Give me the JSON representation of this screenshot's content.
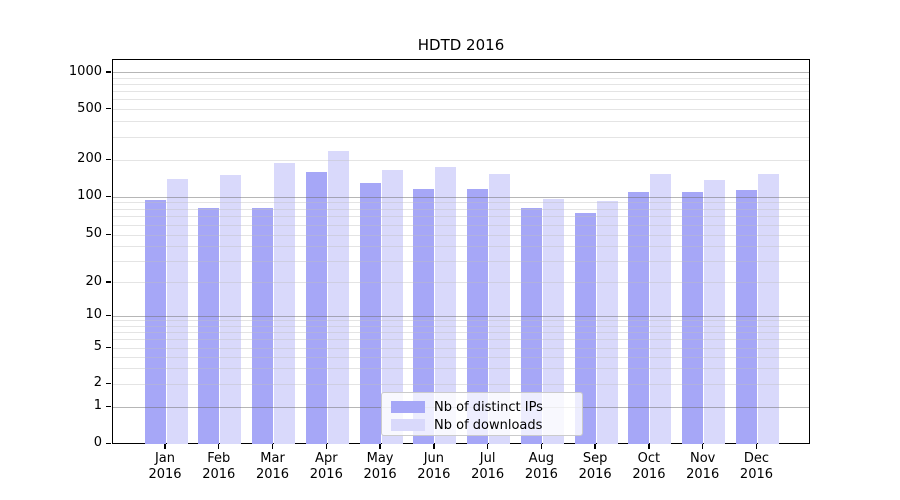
{
  "title": "HDTD 2016",
  "colors": {
    "ips_bar": "#a6a7f7",
    "downloads_bar": "#d9d9fb",
    "grid_major": "rgba(110,110,110,0.5)",
    "grid_minor": "rgba(190,190,190,0.42)",
    "spine": "#000000",
    "legend_border": "#cbcbcb"
  },
  "legend": {
    "items": [
      {
        "label": "Nb of distinct IPs",
        "color_key": "ips_bar"
      },
      {
        "label": "Nb of downloads",
        "color_key": "downloads_bar"
      }
    ]
  },
  "axes": {
    "y_tick_labels": [
      "0",
      "1",
      "2",
      "5",
      "10",
      "20",
      "50",
      "100",
      "200",
      "500",
      "1000"
    ],
    "x_tick_year": "2016"
  },
  "chart_data": {
    "type": "bar",
    "title": "HDTD 2016",
    "categories": [
      "Jan 2016",
      "Feb 2016",
      "Mar 2016",
      "Apr 2016",
      "May 2016",
      "Jun 2016",
      "Jul 2016",
      "Aug 2016",
      "Sep 2016",
      "Oct 2016",
      "Nov 2016",
      "Dec 2016"
    ],
    "month_labels": [
      "Jan",
      "Feb",
      "Mar",
      "Apr",
      "May",
      "Jun",
      "Jul",
      "Aug",
      "Sep",
      "Oct",
      "Nov",
      "Dec"
    ],
    "year_label": "2016",
    "series": [
      {
        "name": "Nb of distinct IPs",
        "color_key": "ips_bar",
        "values": [
          94,
          82,
          82,
          161,
          130,
          117,
          116,
          82,
          75,
          109,
          109,
          115
        ]
      },
      {
        "name": "Nb of downloads",
        "color_key": "downloads_bar",
        "values": [
          140,
          151,
          190,
          237,
          167,
          177,
          155,
          97,
          93,
          154,
          139,
          153
        ]
      }
    ],
    "yscale": "symlog",
    "y_ticks": [
      0,
      1,
      2,
      5,
      10,
      20,
      50,
      100,
      200,
      500,
      1000
    ],
    "ylim": [
      0,
      1260
    ],
    "grid": true,
    "legend_position": "lower center"
  }
}
